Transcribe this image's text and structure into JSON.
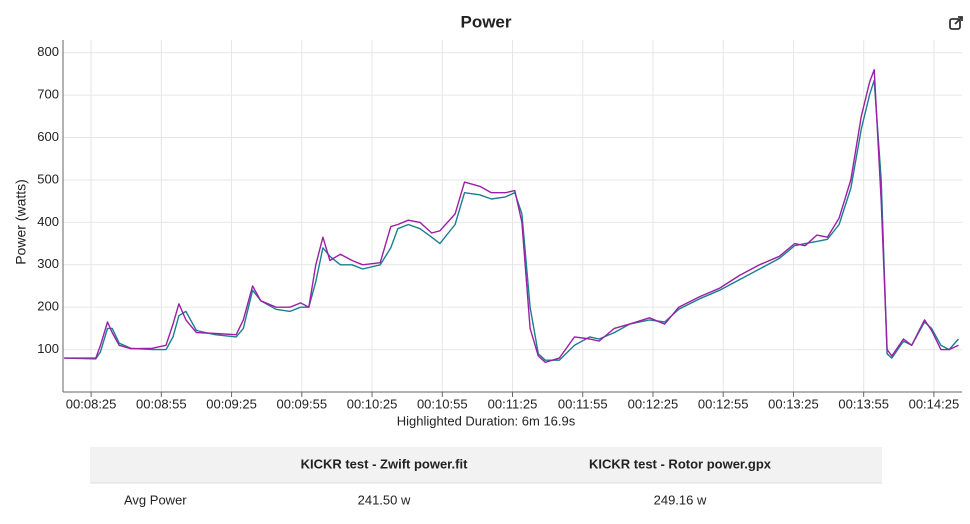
{
  "chart_data": {
    "type": "line",
    "title": "Power",
    "ylabel": "Power (watts)",
    "xlabel": "Highlighted Duration: 6m 16.9s",
    "x": [
      493.5,
      507,
      509,
      512,
      514,
      517,
      522,
      531,
      537,
      540,
      542.5,
      545.5,
      550,
      558,
      567,
      570,
      574,
      577.5,
      584,
      590,
      594.5,
      598,
      601,
      604,
      607,
      611.5,
      616.5,
      621,
      628.5,
      633,
      636,
      640.5,
      645.5,
      650.5,
      654,
      660.5,
      664.5,
      671,
      676,
      682,
      686,
      689,
      692.5,
      696,
      699,
      705,
      711.5,
      718,
      722,
      728.5,
      735,
      743.5,
      750,
      756,
      765,
      773.5,
      782,
      790.5,
      799,
      805.5,
      810,
      815,
      819.5,
      824.5,
      829.5,
      834,
      837.5,
      839.5,
      842.5,
      845,
      847,
      852,
      855.5,
      861,
      864,
      868,
      871.5,
      875.5
    ],
    "series": [
      {
        "color": "#1b7f8e",
        "values": [
          80,
          78,
          95,
          150,
          150,
          115,
          103,
          100,
          100,
          130,
          180,
          190,
          145,
          135,
          130,
          150,
          240,
          215,
          195,
          190,
          200,
          200,
          260,
          340,
          320,
          300,
          300,
          290,
          300,
          340,
          385,
          395,
          385,
          365,
          350,
          395,
          470,
          465,
          455,
          460,
          470,
          420,
          200,
          90,
          75,
          75,
          110,
          130,
          125,
          140,
          160,
          170,
          165,
          195,
          220,
          240,
          265,
          290,
          315,
          345,
          350,
          355,
          360,
          395,
          480,
          620,
          700,
          735,
          500,
          90,
          80,
          120,
          110,
          165,
          150,
          110,
          100,
          125
        ]
      },
      {
        "color": "#9b1fa6",
        "values": [
          80,
          80,
          110,
          165,
          140,
          110,
          102,
          103,
          110,
          160,
          208,
          170,
          140,
          138,
          135,
          170,
          250,
          215,
          200,
          200,
          210,
          200,
          300,
          365,
          310,
          325,
          310,
          300,
          305,
          390,
          395,
          405,
          400,
          375,
          380,
          420,
          495,
          485,
          470,
          470,
          475,
          400,
          150,
          85,
          70,
          80,
          130,
          125,
          120,
          150,
          160,
          175,
          160,
          200,
          225,
          245,
          275,
          300,
          320,
          350,
          345,
          370,
          365,
          410,
          500,
          650,
          730,
          760,
          450,
          100,
          85,
          125,
          110,
          170,
          145,
          100,
          100,
          110
        ]
      }
    ],
    "xlim": [
      493,
      877
    ],
    "ylim": [
      0,
      830
    ],
    "xticks": [
      {
        "value": 505,
        "label": "00:08:25"
      },
      {
        "value": 535,
        "label": "00:08:55"
      },
      {
        "value": 565,
        "label": "00:09:25"
      },
      {
        "value": 595,
        "label": "00:09:55"
      },
      {
        "value": 625,
        "label": "00:10:25"
      },
      {
        "value": 655,
        "label": "00:10:55"
      },
      {
        "value": 685,
        "label": "00:11:25"
      },
      {
        "value": 715,
        "label": "00:11:55"
      },
      {
        "value": 745,
        "label": "00:12:25"
      },
      {
        "value": 775,
        "label": "00:12:55"
      },
      {
        "value": 805,
        "label": "00:13:25"
      },
      {
        "value": 835,
        "label": "00:13:55"
      },
      {
        "value": 865,
        "label": "00:14:25"
      }
    ],
    "yticks": [
      100,
      200,
      300,
      400,
      500,
      600,
      700,
      800
    ],
    "grid": true
  },
  "table": {
    "header": [
      "KICKR test - Zwift power.fit",
      "KICKR test - Rotor power.gpx"
    ],
    "rows": [
      [
        "Avg Power",
        "241.50 w",
        "249.16 w"
      ]
    ]
  }
}
